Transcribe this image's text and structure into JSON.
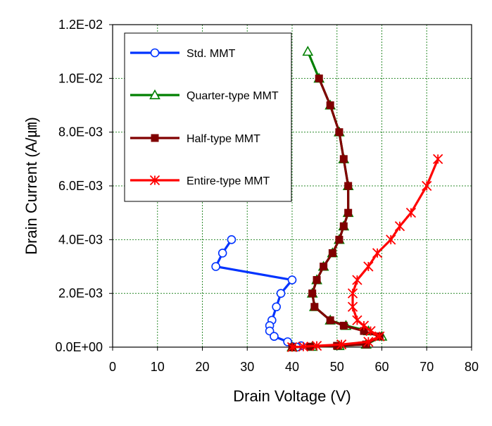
{
  "chart_data": {
    "type": "scatter",
    "title": "",
    "xlabel": "Drain Voltage (V)",
    "ylabel": "Drain Current (A/㎛)",
    "xlim": [
      0,
      80
    ],
    "ylim": [
      0,
      0.012
    ],
    "x_ticks": [
      0,
      10,
      20,
      30,
      40,
      50,
      60,
      70,
      80
    ],
    "x_tick_labels": [
      "0",
      "10",
      "20",
      "30",
      "40",
      "50",
      "60",
      "70",
      "80"
    ],
    "y_ticks": [
      0,
      0.002,
      0.004,
      0.006,
      0.008,
      0.01,
      0.012
    ],
    "y_tick_labels": [
      "0.0E+00",
      "2.0E-03",
      "4.0E-03",
      "6.0E-03",
      "8.0E-03",
      "1.0E-02",
      "1.2E-02"
    ],
    "grid": "dashed-green",
    "legend_position": "top-left",
    "series": [
      {
        "name": "Std.  MMT",
        "color": "#0033ff",
        "marker": "circle-open",
        "points": [
          [
            26.5,
            0.004
          ],
          [
            24.5,
            0.0035
          ],
          [
            23.0,
            0.003
          ],
          [
            40.0,
            0.0025
          ],
          [
            37.5,
            0.002
          ],
          [
            36.5,
            0.0015
          ],
          [
            35.5,
            0.001
          ],
          [
            35.0,
            0.0008
          ],
          [
            35.0,
            0.0006
          ],
          [
            36.0,
            0.0004
          ],
          [
            39.0,
            0.0002
          ],
          [
            42.0,
            5e-05
          ],
          [
            41.0,
            0.0
          ]
        ]
      },
      {
        "name": "Quarter-type  MMT",
        "color": "#008000",
        "marker": "triangle-open",
        "points": [
          [
            43.5,
            0.011
          ],
          [
            46.0,
            0.01
          ],
          [
            48.5,
            0.009
          ],
          [
            50.5,
            0.008
          ],
          [
            51.5,
            0.007
          ],
          [
            52.5,
            0.006
          ],
          [
            52.5,
            0.005
          ],
          [
            51.5,
            0.0045
          ],
          [
            50.5,
            0.004
          ],
          [
            49.0,
            0.0035
          ],
          [
            47.0,
            0.003
          ],
          [
            45.5,
            0.0025
          ],
          [
            44.5,
            0.002
          ],
          [
            45.0,
            0.0015
          ],
          [
            48.5,
            0.001
          ],
          [
            52.0,
            0.0008
          ],
          [
            57.0,
            0.0006
          ],
          [
            60.0,
            0.0004
          ],
          [
            56.5,
            0.0001
          ],
          [
            50.5,
            5e-05
          ],
          [
            44.5,
            2e-05
          ],
          [
            40.0,
            0.0
          ]
        ]
      },
      {
        "name": "Half-type  MMT",
        "color": "#800000",
        "marker": "square-filled",
        "points": [
          [
            46.0,
            0.01
          ],
          [
            48.5,
            0.009
          ],
          [
            50.5,
            0.008
          ],
          [
            51.5,
            0.007
          ],
          [
            52.5,
            0.006
          ],
          [
            52.5,
            0.005
          ],
          [
            51.5,
            0.0045
          ],
          [
            50.5,
            0.004
          ],
          [
            49.0,
            0.0035
          ],
          [
            47.0,
            0.003
          ],
          [
            45.5,
            0.0025
          ],
          [
            44.5,
            0.002
          ],
          [
            45.0,
            0.0015
          ],
          [
            48.5,
            0.001
          ],
          [
            51.5,
            0.0008
          ],
          [
            56.0,
            0.0006
          ],
          [
            59.5,
            0.0004
          ],
          [
            56.5,
            0.0001
          ],
          [
            50.0,
            5e-05
          ],
          [
            44.0,
            2e-05
          ],
          [
            40.0,
            0.0
          ]
        ]
      },
      {
        "name": "Entire-type  MMT",
        "color": "#ff0000",
        "marker": "asterisk",
        "points": [
          [
            72.5,
            0.007
          ],
          [
            70.0,
            0.006
          ],
          [
            66.5,
            0.005
          ],
          [
            64.0,
            0.0045
          ],
          [
            62.0,
            0.004
          ],
          [
            59.0,
            0.0035
          ],
          [
            57.0,
            0.003
          ],
          [
            54.5,
            0.0025
          ],
          [
            53.5,
            0.002
          ],
          [
            53.5,
            0.0015
          ],
          [
            54.5,
            0.001
          ],
          [
            56.0,
            0.0008
          ],
          [
            57.5,
            0.0006
          ],
          [
            59.5,
            0.0004
          ],
          [
            57.0,
            0.0002
          ],
          [
            51.0,
            0.0001
          ],
          [
            45.5,
            5e-05
          ],
          [
            42.5,
            2e-05
          ],
          [
            40.0,
            0.0
          ]
        ]
      }
    ]
  }
}
